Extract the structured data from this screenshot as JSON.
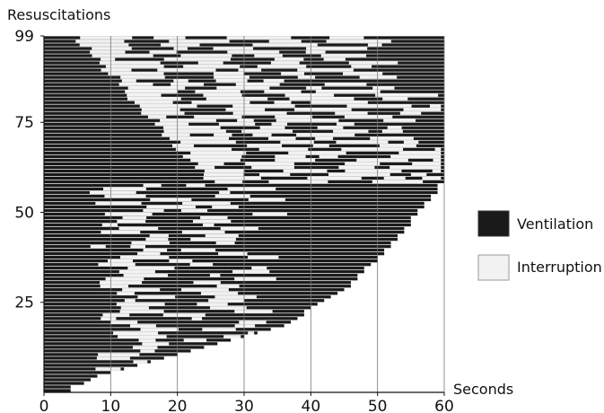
{
  "chart_data": {
    "type": "bar",
    "orientation": "horizontal",
    "title": "",
    "ylabel": "Resuscitations",
    "xlabel": "Seconds",
    "xlim": [
      0,
      60
    ],
    "ylim": [
      0,
      99
    ],
    "x_ticks": [
      "0",
      "10",
      "20",
      "30",
      "40",
      "50",
      "60"
    ],
    "y_ticks": [
      "25",
      "50",
      "75",
      "99"
    ],
    "legend": {
      "placement": "right",
      "items": [
        {
          "name": "Ventilation",
          "color": "#1a1a1a"
        },
        {
          "name": "Interruption",
          "color": "#f2f2f2"
        }
      ]
    },
    "rows": 99,
    "row_end_seconds": [
      4,
      4,
      6,
      7,
      8,
      10,
      12,
      14,
      16,
      18,
      20,
      22,
      24,
      26,
      28,
      30,
      32,
      34,
      36,
      37,
      38,
      39,
      39,
      40,
      41,
      42,
      43,
      44,
      45,
      46,
      46,
      47,
      47,
      48,
      48,
      49,
      50,
      50,
      51,
      51,
      52,
      52,
      53,
      53,
      54,
      54,
      55,
      55,
      55,
      56,
      56,
      57,
      57,
      58,
      58,
      59,
      59,
      59,
      60,
      60,
      60,
      60,
      60,
      60,
      60,
      60,
      60,
      60,
      60,
      60,
      60,
      60,
      60,
      60,
      60,
      60,
      60,
      60,
      60,
      60,
      60,
      60,
      60,
      60,
      60,
      60,
      60,
      60,
      60,
      60,
      60,
      60,
      60,
      60,
      60,
      60,
      60,
      60,
      60
    ],
    "interruption_pattern": "alternating ventilation and interruption segments per resuscitation; dense interruption band between ~5-45 s for resuscitations 60-99 and scattered gaps elsewhere"
  }
}
